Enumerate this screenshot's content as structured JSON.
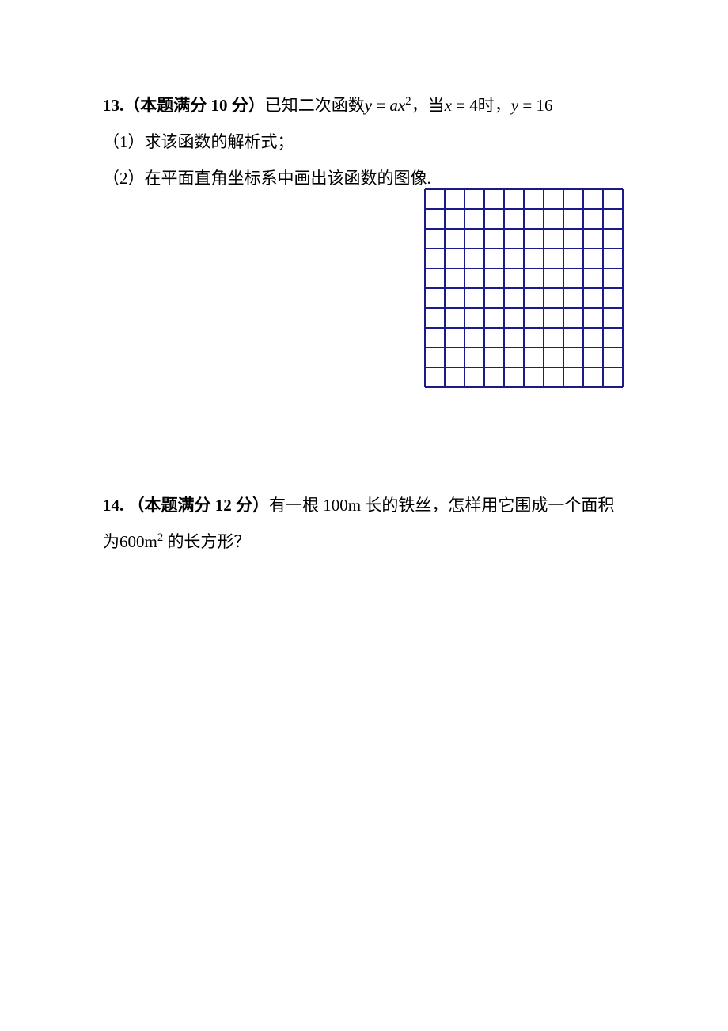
{
  "problem13": {
    "number": "13.",
    "points_prefix": "（本题满分 ",
    "points_value": "10",
    "points_suffix": " 分）",
    "stem_part1": "已知二次函数",
    "func_var": "y",
    "func_eq": " = ",
    "func_a": "a",
    "func_x": "x",
    "func_exp": "2",
    "stem_part2": "，当",
    "cond1_var": "x",
    "cond1_eq": " = ",
    "cond1_val": "4",
    "cond1_suffix": "时，",
    "cond2_var": "y",
    "cond2_eq": " = ",
    "cond2_val": "16",
    "sub1": "（1）求该函数的解析式；",
    "sub2": "（2）在平面直角坐标系中画出该函数的图像."
  },
  "problem14": {
    "number": "14.",
    "points_prefix": "（本题满分 ",
    "points_value": "12",
    "points_suffix": " 分）",
    "stem_part1": "有一根 ",
    "length_val": "100m",
    "stem_part2": " 长的铁丝，怎样用它围成一个面积为",
    "area_val": "600m",
    "area_exp": "2",
    "stem_part3": " 的长方形？"
  },
  "grid": {
    "rows": 10,
    "cols": 10,
    "cell_size": 25,
    "line_color": "#1a1a8a",
    "line_width": 2,
    "background": "#ffffff"
  }
}
